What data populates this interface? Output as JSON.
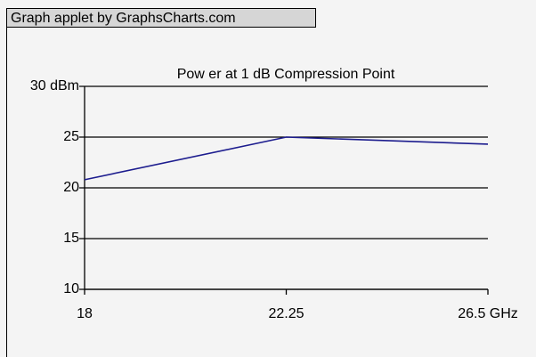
{
  "applet_label": "Graph applet by GraphsCharts.com",
  "chart_data": {
    "type": "line",
    "title": "Pow er at 1 dB Compression Point",
    "x": [
      18,
      22.25,
      26.5
    ],
    "values": [
      20.8,
      25,
      24.3
    ],
    "color": "#1c1c8e",
    "xlim": [
      18,
      26.5
    ],
    "xticks": [
      18,
      22.25,
      {
        "value": 26.5,
        "label": "26.5 GHz"
      }
    ],
    "ylim": [
      10,
      30
    ],
    "yticks": [
      10,
      15,
      20,
      25,
      {
        "value": 30,
        "label": "30 dBm"
      }
    ],
    "grid": true
  }
}
